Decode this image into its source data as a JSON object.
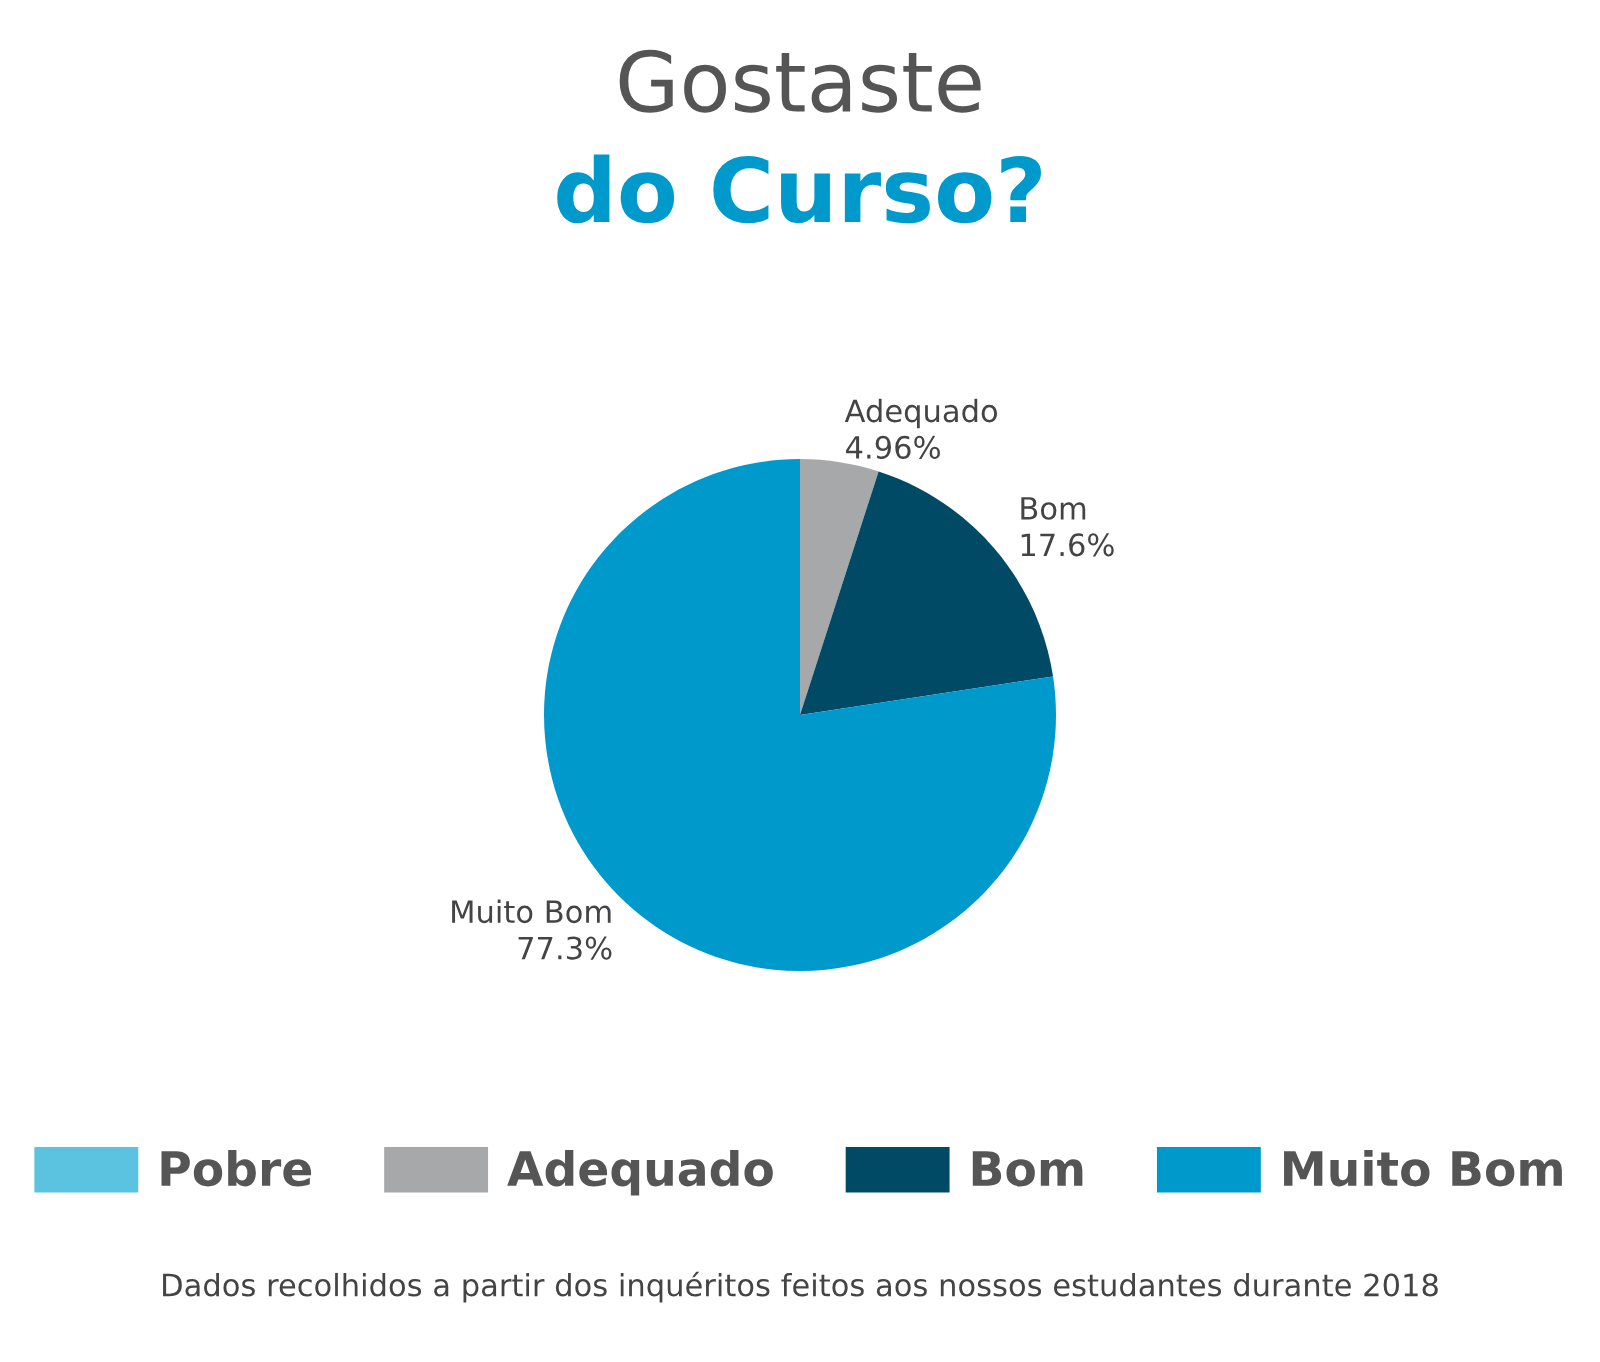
{
  "chart_data": {
    "type": "pie",
    "title": "Gostaste",
    "subtitle": "do Curso?",
    "categories": [
      "Pobre",
      "Adequado",
      "Bom",
      "Muito Bom"
    ],
    "values": [
      0,
      4.96,
      17.6,
      77.3
    ],
    "colors": [
      "#5bc2e0",
      "#a6a8a9",
      "#004a66",
      "#0099cc"
    ],
    "value_labels": [
      null,
      "4.96%",
      "17.6%",
      "77.3%"
    ],
    "legend": "bottom",
    "annotations": [
      "Dados recolhidos a partir dos inquéritos feitos aos nossos estudantes durante 2018"
    ]
  }
}
